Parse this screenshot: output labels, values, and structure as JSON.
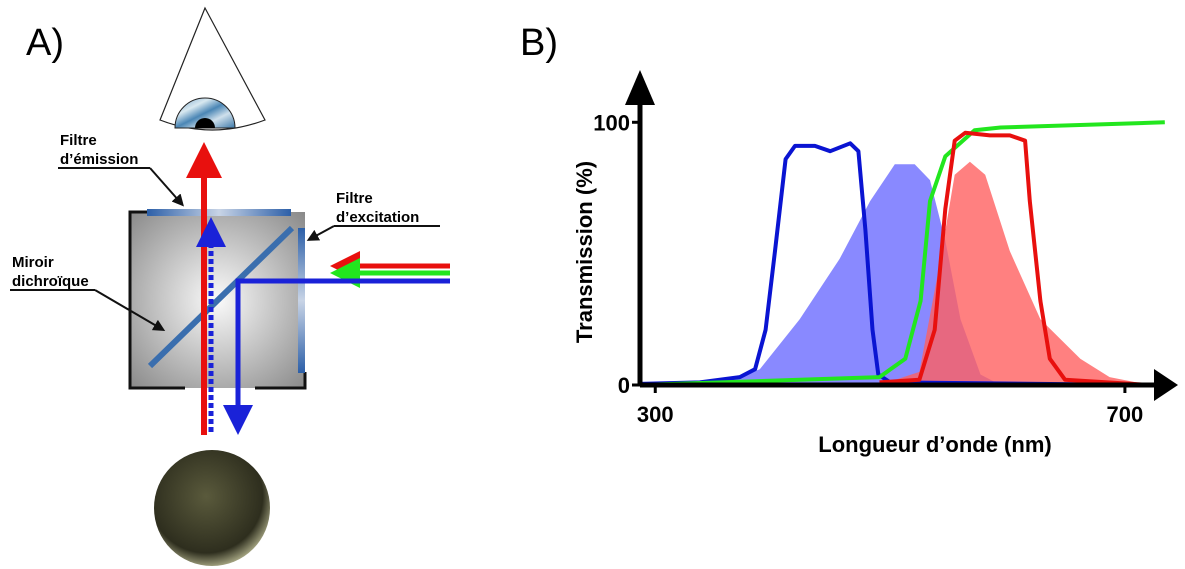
{
  "panel_a": {
    "label": "A)",
    "emission_filter": [
      "Filtre",
      "d’émission"
    ],
    "excitation_filter": [
      "Filtre",
      "d’excitation"
    ],
    "dichroic_mirror": [
      "Miroir",
      "dichroïque"
    ]
  },
  "chart_data": {
    "type": "line",
    "panel_label": "B)",
    "xlabel": "Longueur d’onde (nm)",
    "ylabel": "Transmission (%)",
    "xlim": [
      287,
      735
    ],
    "ylim": [
      0,
      118
    ],
    "xticks": [
      300,
      700
    ],
    "yticks": [
      0,
      100
    ],
    "series": [
      {
        "style": "area",
        "color": "#6b6bff",
        "x": [
          355,
          389,
          423,
          457,
          483,
          504,
          521,
          534,
          547,
          560,
          577,
          594
        ],
        "values": [
          0,
          6,
          25,
          48,
          70,
          84,
          84,
          78,
          55,
          25,
          4,
          0
        ]
      },
      {
        "style": "area",
        "color": "#ff6060",
        "x": [
          491,
          525,
          543,
          555,
          568,
          581,
          602,
          628,
          662,
          687,
          721
        ],
        "values": [
          0,
          5,
          48,
          80,
          85,
          80,
          51,
          25,
          10,
          3,
          0
        ]
      },
      {
        "style": "line",
        "color": "#0a14d2",
        "x": [
          287,
          338,
          372,
          385,
          394,
          402,
          411,
          419,
          436,
          449,
          466,
          473,
          479,
          485,
          490,
          500,
          721
        ],
        "values": [
          0.4,
          1,
          3,
          6,
          21,
          51,
          86,
          91,
          91,
          89,
          92,
          89,
          59,
          21,
          4,
          1,
          0
        ]
      },
      {
        "style": "line",
        "color": "#22e61e",
        "x": [
          287,
          491,
          513,
          526,
          534,
          547,
          572,
          594,
          734
        ],
        "values": [
          0,
          3,
          10,
          32,
          70,
          87,
          97,
          98,
          100
        ]
      },
      {
        "style": "line",
        "color": "#e8100e",
        "x": [
          491,
          525,
          538,
          547,
          555,
          564,
          585,
          602,
          615,
          619,
          628,
          636,
          649,
          721
        ],
        "values": [
          1,
          2,
          21,
          67,
          93,
          96,
          95,
          95,
          93,
          70,
          32,
          10,
          2,
          0
        ]
      }
    ]
  }
}
